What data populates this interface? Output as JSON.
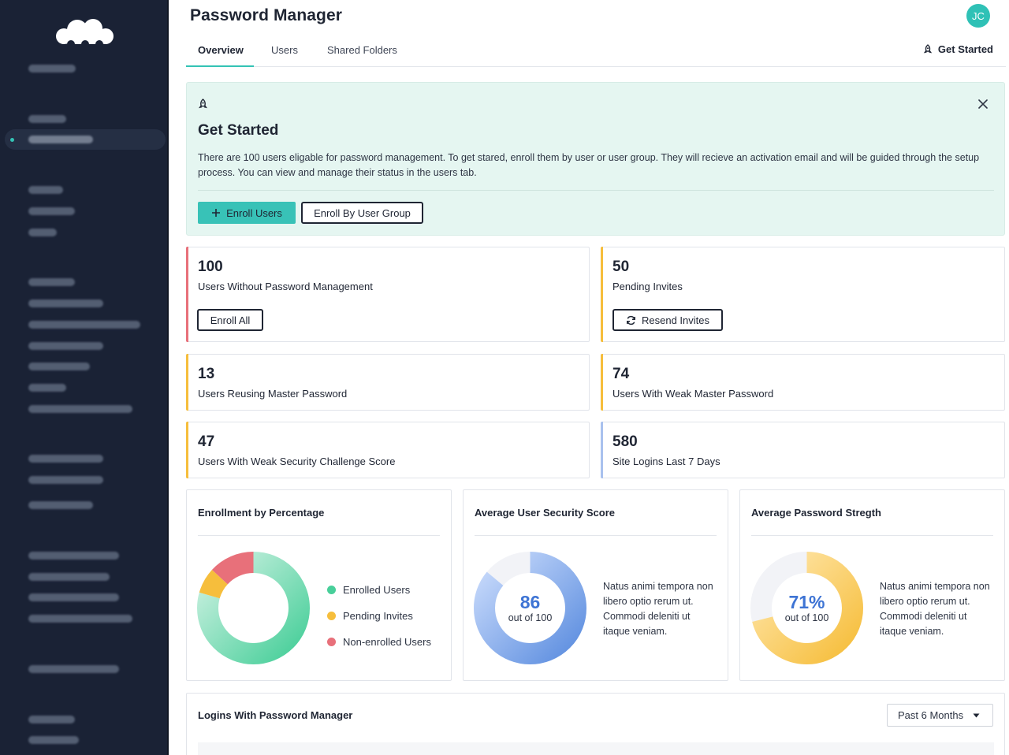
{
  "app": {
    "title": "Password Manager",
    "avatar_initials": "JC",
    "accent_color": "#34c3b5"
  },
  "tabs": [
    {
      "label": "Overview",
      "active": true
    },
    {
      "label": "Users",
      "active": false
    },
    {
      "label": "Shared Folders",
      "active": false
    }
  ],
  "header": {
    "get_started_label": "Get Started",
    "get_started_icon": "rocket-icon"
  },
  "banner": {
    "title": "Get Started",
    "icon": "rocket-icon",
    "text": "There are 100 users eligable for password management.  To get stared, enroll them by user or user group. They will recieve an activation email and will be guided through the setup process. You can view and manage their status in the users tab.",
    "enroll_users_label": "Enroll Users",
    "enroll_group_label": "Enroll By User Group",
    "background_color": "#e5f6f1"
  },
  "stats": [
    {
      "value": "100",
      "label": "Users Without Password Management",
      "accent": "#e8707a",
      "action": "Enroll All"
    },
    {
      "value": "50",
      "label": "Pending Invites",
      "accent": "#f6be3c",
      "action": "Resend Invites"
    },
    {
      "value": "13",
      "label": "Users Reusing Master Password",
      "accent": "#f6be3c"
    },
    {
      "value": "74",
      "label": "Users With Weak Master Password",
      "accent": "#f6be3c"
    },
    {
      "value": "47",
      "label": "Users With Weak Security Challenge Score",
      "accent": "#f6be3c"
    },
    {
      "value": "580",
      "label": "Site Logins Last 7 Days",
      "accent": "#a9c1ee"
    }
  ],
  "panels": {
    "enrollment": {
      "title": "Enrollment by Percentage",
      "legend": [
        {
          "label": "Enrolled Users",
          "color": "#48cf9a"
        },
        {
          "label": "Pending Invites",
          "color": "#f6be3c"
        },
        {
          "label": "Non-enrolled Users",
          "color": "#e8707a"
        }
      ],
      "slices": [
        {
          "name": "Enrolled Users",
          "fraction": 0.75
        },
        {
          "name": "Pending Invites",
          "fraction": 0.07
        },
        {
          "name": "Non-enrolled Users",
          "fraction": 0.125
        }
      ]
    },
    "security_score": {
      "title": "Average User Security Score",
      "value": "86",
      "sub": "out of 100",
      "fraction": 0.86,
      "color": "#5e8fe0",
      "text": "Natus animi tempora non libero optio rerum ut. Commodi deleniti ut itaque veniam."
    },
    "password_strength": {
      "title": "Average Password Stregth",
      "value": "71%",
      "sub": "out of 100",
      "fraction": 0.71,
      "color": "#f6be3c",
      "text": "Natus animi tempora non libero optio rerum ut. Commodi deleniti ut itaque veniam."
    }
  },
  "logins": {
    "title": "Logins With Password Manager",
    "range": "Past 6 Months"
  }
}
